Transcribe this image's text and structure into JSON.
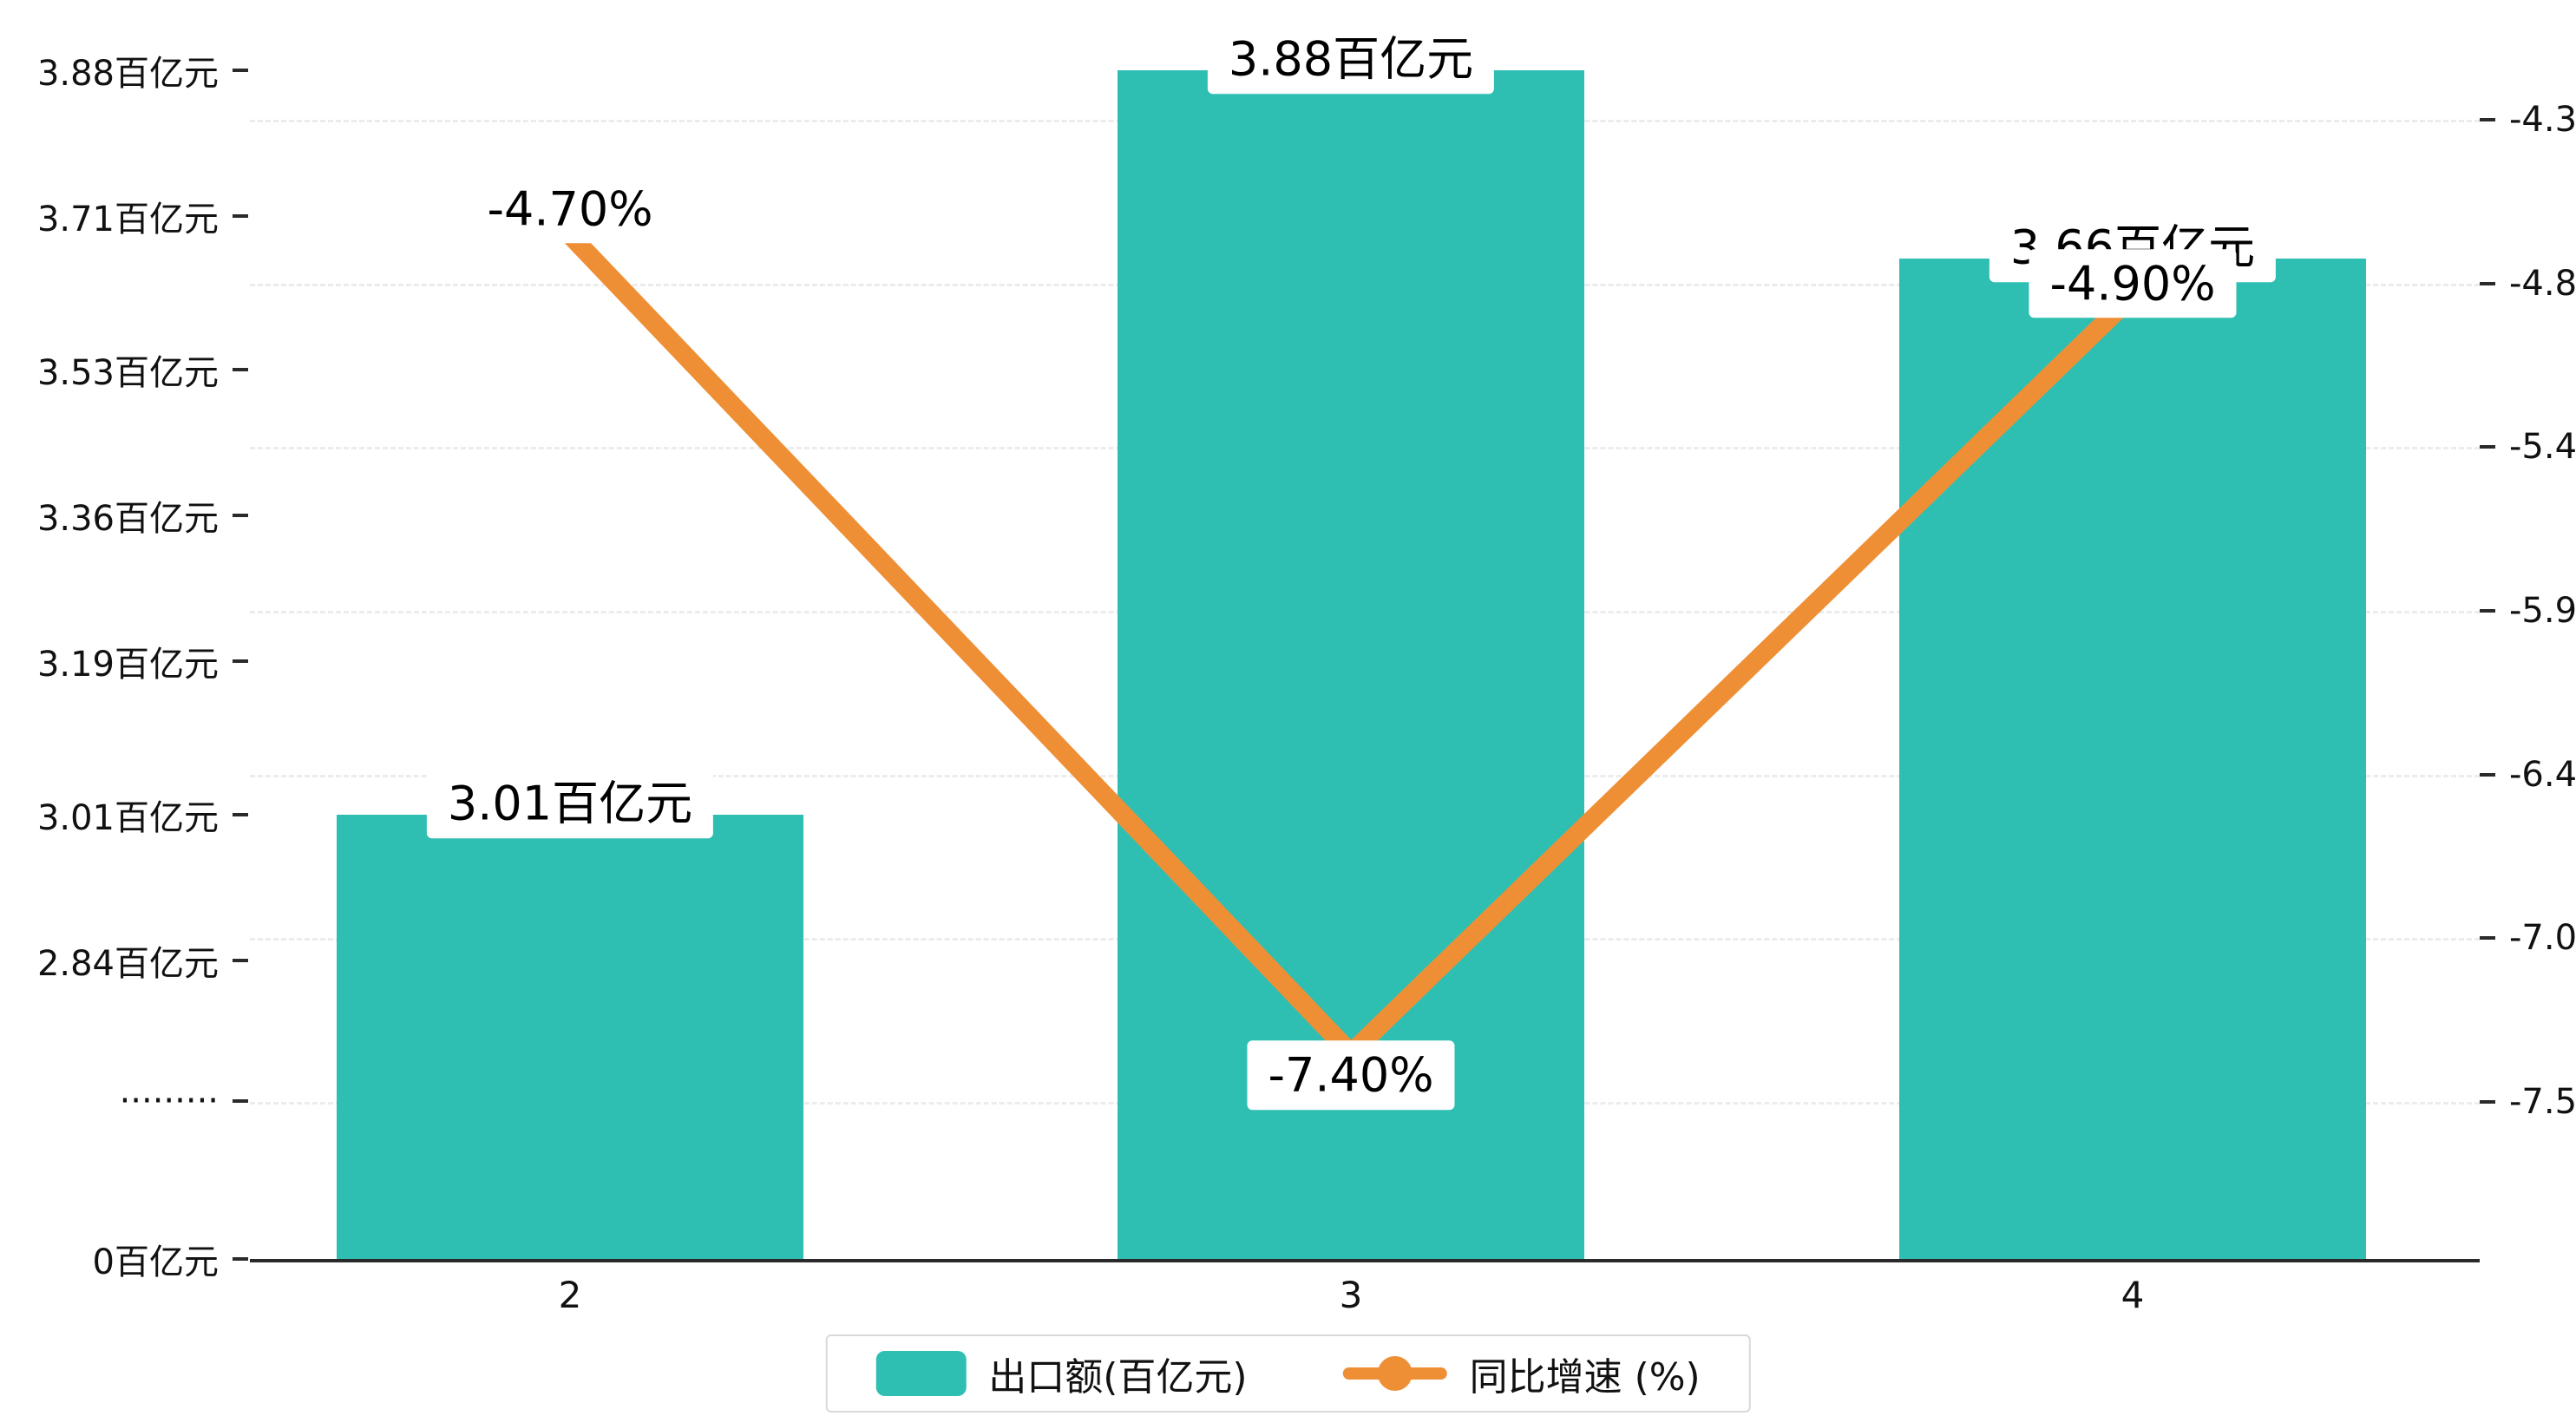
{
  "chart_data": {
    "type": "bar",
    "combo": "bar+line dual axis",
    "title": "",
    "categories": [
      "2",
      "3",
      "4"
    ],
    "series": [
      {
        "name": "出口额(百亿元)",
        "type": "bar",
        "values": [
          3.01,
          3.88,
          3.66
        ],
        "data_labels": [
          "3.01百亿元",
          "3.88百亿元",
          "3.66百亿元"
        ],
        "color": "#2ebfb2"
      },
      {
        "name": "同比增速 (%)",
        "type": "line",
        "axis": "right",
        "values": [
          -4.7,
          -7.4,
          -4.9
        ],
        "data_labels": [
          "-4.70%",
          "-7.40%",
          "-4.90%"
        ],
        "color": "#ef8f35"
      }
    ],
    "left_axis": {
      "unit": "百亿元",
      "labels": [
        "3.88百亿元",
        "3.71百亿元",
        "3.53百亿元",
        "3.36百亿元",
        "3.19百亿元",
        "3.01百亿元",
        "2.84百亿元",
        "·········",
        "0百亿元"
      ],
      "tick_values": [
        3.88,
        3.71,
        3.53,
        3.36,
        3.19,
        3.01,
        2.84,
        null,
        0
      ],
      "axis_break": true
    },
    "right_axis": {
      "labels": [
        "-4.32",
        "-4.86",
        "-5.40",
        "-5.94",
        "-6.48",
        "-7.02",
        "-7.56"
      ],
      "tick_values": [
        -4.32,
        -4.86,
        -5.4,
        -5.94,
        -6.48,
        -7.02,
        -7.56
      ]
    },
    "legend": {
      "position": "bottom",
      "items": [
        "出口额(百亿元)",
        "同比增速 (%)"
      ]
    },
    "grid": "dashed horizontal"
  },
  "colors": {
    "bar": "#2ebfb2",
    "line": "#ef8f35",
    "axis": "#2a2a2a",
    "grid": "#ececec",
    "background": "#ffffff"
  }
}
